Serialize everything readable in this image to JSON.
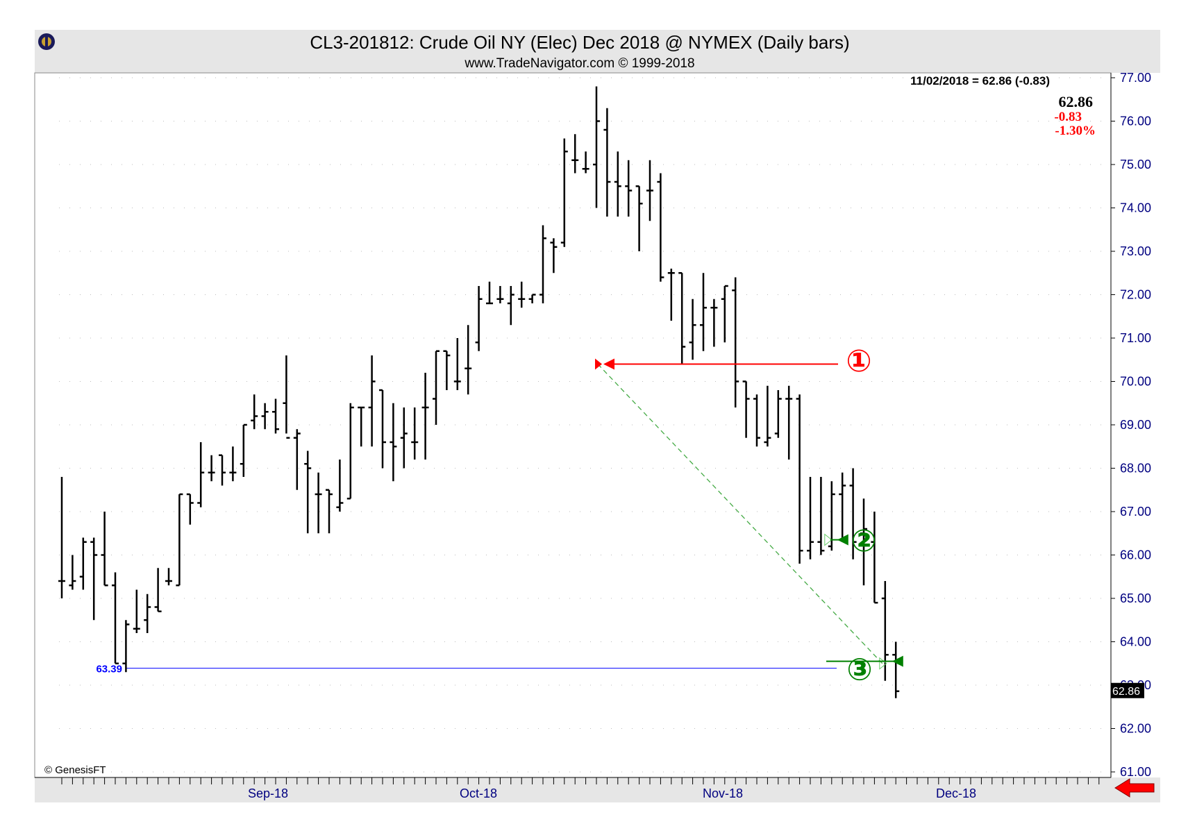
{
  "header": {
    "title": "CL3-201812:  Crude Oil NY (Elec) Dec 2018 @ NYMEX  (Daily bars)",
    "subtitle": "www.TradeNavigator.com © 1999-2018",
    "logo_icon": "trade-navigator-logo-icon"
  },
  "readout": {
    "summary": "11/02/2018 = 62.86 (-0.83)",
    "last": "62.86",
    "change": "-0.83",
    "percent": "-1.30%"
  },
  "copyright": "© GenesisFT",
  "colors": {
    "frame_bg": "#e6e6e6",
    "plot_bg": "#ffffff",
    "bars": "#000000",
    "axis_text": "#000080",
    "red": "#ff0000",
    "green": "#008000",
    "trendline": "#44aa44",
    "support_line": "#0000ff"
  },
  "chart_data": {
    "type": "ohlc",
    "title": "CL3-201812:  Crude Oil NY (Elec) Dec 2018 @ NYMEX  (Daily bars)",
    "ylim": [
      60.8,
      77.2
    ],
    "y_ticks": [
      "77.00",
      "76.00",
      "75.00",
      "74.00",
      "73.00",
      "72.00",
      "71.00",
      "70.00",
      "69.00",
      "68.00",
      "67.00",
      "66.00",
      "65.00",
      "64.00",
      "63.00",
      "62.00",
      "61.00"
    ],
    "x_labels": [
      "Sep-18",
      "Oct-18",
      "Nov-18",
      "Dec-18"
    ],
    "grid": true,
    "last_price_tag": "62.86",
    "support": {
      "label": "63.39",
      "value": 63.39
    },
    "trendline": {
      "from": 70.4,
      "to": 63.5
    },
    "bars": [
      {
        "o": 65.4,
        "h": 67.8,
        "l": 65.0,
        "c": 65.4
      },
      {
        "o": 65.3,
        "h": 66.0,
        "l": 65.2,
        "c": 65.4
      },
      {
        "o": 65.5,
        "h": 66.4,
        "l": 65.2,
        "c": 66.3
      },
      {
        "o": 66.3,
        "h": 66.4,
        "l": 64.5,
        "c": 66.0
      },
      {
        "o": 66.0,
        "h": 67.0,
        "l": 65.3,
        "c": 65.3
      },
      {
        "o": 65.3,
        "h": 65.6,
        "l": 63.5,
        "c": 63.5
      },
      {
        "o": 63.5,
        "h": 64.5,
        "l": 63.3,
        "c": 64.4
      },
      {
        "o": 64.3,
        "h": 65.2,
        "l": 64.2,
        "c": 64.3
      },
      {
        "o": 64.5,
        "h": 65.1,
        "l": 64.2,
        "c": 64.8
      },
      {
        "o": 64.8,
        "h": 65.7,
        "l": 64.7,
        "c": 64.7
      },
      {
        "o": 65.4,
        "h": 65.7,
        "l": 65.3,
        "c": 65.4
      },
      {
        "o": 65.3,
        "h": 67.4,
        "l": 65.3,
        "c": 67.4
      },
      {
        "o": 67.4,
        "h": 67.4,
        "l": 66.7,
        "c": 67.2
      },
      {
        "o": 67.2,
        "h": 68.6,
        "l": 67.1,
        "c": 67.9
      },
      {
        "o": 67.9,
        "h": 68.3,
        "l": 67.7,
        "c": 67.9
      },
      {
        "o": 68.3,
        "h": 68.3,
        "l": 67.6,
        "c": 67.9
      },
      {
        "o": 67.9,
        "h": 68.5,
        "l": 67.7,
        "c": 67.9
      },
      {
        "o": 68.1,
        "h": 69.0,
        "l": 67.8,
        "c": 69.0
      },
      {
        "o": 69.1,
        "h": 69.7,
        "l": 68.9,
        "c": 69.2
      },
      {
        "o": 69.2,
        "h": 69.5,
        "l": 68.9,
        "c": 69.3
      },
      {
        "o": 69.3,
        "h": 69.6,
        "l": 68.8,
        "c": 68.9
      },
      {
        "o": 69.5,
        "h": 70.6,
        "l": 68.8,
        "c": 68.7
      },
      {
        "o": 68.7,
        "h": 68.9,
        "l": 67.5,
        "c": 68.8
      },
      {
        "o": 68.1,
        "h": 68.4,
        "l": 66.5,
        "c": 68.0
      },
      {
        "o": 67.4,
        "h": 67.9,
        "l": 66.5,
        "c": 67.4
      },
      {
        "o": 67.5,
        "h": 67.5,
        "l": 66.5,
        "c": 67.4
      },
      {
        "o": 67.1,
        "h": 68.2,
        "l": 67.0,
        "c": 67.2
      },
      {
        "o": 67.3,
        "h": 69.5,
        "l": 67.3,
        "c": 69.4
      },
      {
        "o": 69.4,
        "h": 69.4,
        "l": 68.5,
        "c": 69.4
      },
      {
        "o": 69.4,
        "h": 70.6,
        "l": 68.5,
        "c": 70.0
      },
      {
        "o": 69.8,
        "h": 69.8,
        "l": 68.0,
        "c": 68.6
      },
      {
        "o": 68.6,
        "h": 69.5,
        "l": 67.7,
        "c": 68.5
      },
      {
        "o": 68.7,
        "h": 69.4,
        "l": 68.0,
        "c": 68.8
      },
      {
        "o": 68.6,
        "h": 69.4,
        "l": 68.2,
        "c": 68.6
      },
      {
        "o": 69.4,
        "h": 70.2,
        "l": 68.2,
        "c": 69.4
      },
      {
        "o": 69.6,
        "h": 70.7,
        "l": 69.0,
        "c": 70.7
      },
      {
        "o": 70.7,
        "h": 70.7,
        "l": 69.8,
        "c": 70.6
      },
      {
        "o": 70.0,
        "h": 71.0,
        "l": 69.8,
        "c": 70.0
      },
      {
        "o": 70.3,
        "h": 71.3,
        "l": 69.7,
        "c": 70.3
      },
      {
        "o": 70.9,
        "h": 72.2,
        "l": 70.7,
        "c": 71.9
      },
      {
        "o": 71.8,
        "h": 72.3,
        "l": 71.8,
        "c": 71.8
      },
      {
        "o": 71.9,
        "h": 72.2,
        "l": 71.8,
        "c": 71.9
      },
      {
        "o": 71.8,
        "h": 72.2,
        "l": 71.3,
        "c": 72.0
      },
      {
        "o": 71.9,
        "h": 72.3,
        "l": 71.7,
        "c": 71.9
      },
      {
        "o": 71.9,
        "h": 72.0,
        "l": 71.8,
        "c": 72.0
      },
      {
        "o": 72.0,
        "h": 73.6,
        "l": 71.8,
        "c": 73.3
      },
      {
        "o": 73.2,
        "h": 73.3,
        "l": 72.5,
        "c": 73.1
      },
      {
        "o": 73.2,
        "h": 75.6,
        "l": 73.1,
        "c": 75.3
      },
      {
        "o": 75.1,
        "h": 75.7,
        "l": 74.8,
        "c": 75.1
      },
      {
        "o": 74.9,
        "h": 75.3,
        "l": 74.8,
        "c": 74.9
      },
      {
        "o": 75.0,
        "h": 76.8,
        "l": 74.0,
        "c": 76.0
      },
      {
        "o": 75.8,
        "h": 76.3,
        "l": 73.8,
        "c": 74.6
      },
      {
        "o": 74.6,
        "h": 75.3,
        "l": 73.8,
        "c": 74.5
      },
      {
        "o": 74.5,
        "h": 75.1,
        "l": 73.8,
        "c": 74.4
      },
      {
        "o": 74.5,
        "h": 74.5,
        "l": 73.0,
        "c": 74.1
      },
      {
        "o": 74.4,
        "h": 75.1,
        "l": 73.7,
        "c": 74.4
      },
      {
        "o": 74.6,
        "h": 74.8,
        "l": 72.3,
        "c": 72.4
      },
      {
        "o": 72.5,
        "h": 72.6,
        "l": 71.4,
        "c": 72.5
      },
      {
        "o": 72.5,
        "h": 72.5,
        "l": 70.4,
        "c": 70.8
      },
      {
        "o": 70.9,
        "h": 71.9,
        "l": 70.5,
        "c": 71.3
      },
      {
        "o": 71.3,
        "h": 72.5,
        "l": 70.7,
        "c": 71.7
      },
      {
        "o": 71.7,
        "h": 71.9,
        "l": 70.8,
        "c": 71.7
      },
      {
        "o": 71.9,
        "h": 72.2,
        "l": 70.9,
        "c": 72.2
      },
      {
        "o": 72.1,
        "h": 72.4,
        "l": 69.4,
        "c": 70.0
      },
      {
        "o": 70.0,
        "h": 70.0,
        "l": 68.7,
        "c": 69.6
      },
      {
        "o": 69.6,
        "h": 69.7,
        "l": 68.5,
        "c": 68.7
      },
      {
        "o": 68.6,
        "h": 69.9,
        "l": 68.5,
        "c": 68.7
      },
      {
        "o": 68.8,
        "h": 69.8,
        "l": 68.7,
        "c": 69.6
      },
      {
        "o": 69.6,
        "h": 69.9,
        "l": 68.2,
        "c": 69.6
      },
      {
        "o": 69.6,
        "h": 69.7,
        "l": 65.8,
        "c": 66.1
      },
      {
        "o": 66.1,
        "h": 67.8,
        "l": 65.9,
        "c": 66.3
      },
      {
        "o": 66.3,
        "h": 67.8,
        "l": 66.0,
        "c": 66.1
      },
      {
        "o": 66.2,
        "h": 67.7,
        "l": 66.1,
        "c": 67.4
      },
      {
        "o": 67.4,
        "h": 67.9,
        "l": 66.3,
        "c": 67.6
      },
      {
        "o": 67.6,
        "h": 68.0,
        "l": 65.9,
        "c": 66.3
      },
      {
        "o": 66.5,
        "h": 67.3,
        "l": 65.3,
        "c": 66.6
      },
      {
        "o": 66.3,
        "h": 67.0,
        "l": 64.9,
        "c": 64.9
      },
      {
        "o": 65.0,
        "h": 65.4,
        "l": 63.1,
        "c": 63.7
      },
      {
        "o": 63.7,
        "h": 64.0,
        "l": 62.7,
        "c": 62.86
      }
    ]
  }
}
